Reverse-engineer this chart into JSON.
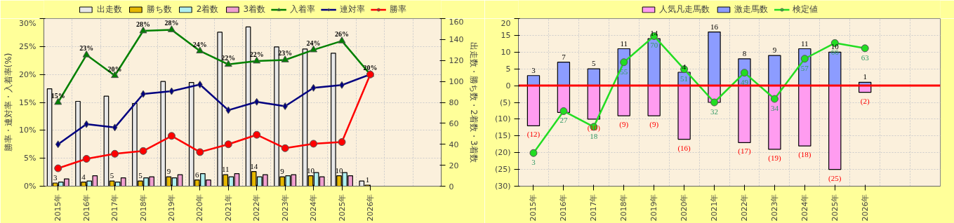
{
  "chart_data": [
    {
      "type": "bar",
      "categories": [
        "2015年",
        "2016年",
        "2017年",
        "2018年",
        "2019年",
        "2020年",
        "2021年",
        "2022年",
        "2023年",
        "2024年",
        "2025年",
        "2026年",
        null,
        null
      ],
      "ylabel": "勝率・連対率・入着率(%)",
      "y2label": "出走数・勝ち数・2着数・3着数",
      "ylim": [
        0,
        30
      ],
      "yticks": [
        {
          "value": 0,
          "label": "0%"
        },
        {
          "value": 5,
          "label": "5%"
        },
        {
          "value": 10,
          "label": "10%"
        },
        {
          "value": 15,
          "label": "15%"
        },
        {
          "value": 20,
          "label": "20%"
        },
        {
          "value": 25,
          "label": "25%"
        },
        {
          "value": 30,
          "label": "30%"
        }
      ],
      "y2lim": [
        0,
        160
      ],
      "y2ticks": [
        0,
        20,
        40,
        60,
        80,
        100,
        120,
        140,
        160
      ],
      "grid": true,
      "legend": "top",
      "series": [
        {
          "name": "出走数",
          "axis": "y2",
          "color": "#e8e8e8",
          "values": [
            93,
            81,
            86,
            79,
            100,
            99,
            147,
            152,
            133,
            131,
            127,
            5,
            null,
            null
          ]
        },
        {
          "name": "勝ち数",
          "axis": "y2",
          "color": "#e6b800",
          "values": [
            3,
            4,
            5,
            5,
            9,
            6,
            11,
            14,
            9,
            10,
            10,
            1,
            null,
            null
          ],
          "value_labels": [
            "3",
            "4",
            "5",
            "5",
            "9",
            "6",
            "11",
            "14",
            "9",
            "10",
            "10",
            "1",
            null,
            null
          ]
        },
        {
          "name": "2着数",
          "axis": "y2",
          "color": "#b0f0f0",
          "values": [
            4,
            5,
            4,
            8,
            8,
            12,
            9,
            9,
            10,
            13,
            13,
            null,
            null,
            null
          ]
        },
        {
          "name": "3着数",
          "axis": "y2",
          "color": "#f0a0d0",
          "values": [
            7,
            10,
            8,
            9,
            11,
            6,
            12,
            11,
            11,
            9,
            10,
            null,
            null,
            null
          ]
        },
        {
          "name": "入着率",
          "type": "line",
          "color": "#008000",
          "marker": "triangle",
          "values": [
            15.0,
            23.5,
            19.8,
            27.8,
            28.0,
            24.2,
            21.8,
            22.4,
            22.6,
            24.4,
            26.0,
            20.0,
            null,
            null
          ],
          "value_labels": [
            "15%",
            "23%",
            "20%",
            "28%",
            "28%",
            "24%",
            "22%",
            "22%",
            "23%",
            "24%",
            "26%",
            "20%",
            null,
            null
          ]
        },
        {
          "name": "連対率",
          "type": "line",
          "color": "#000080",
          "marker": "diamond",
          "values": [
            7.5,
            11.1,
            10.5,
            16.5,
            17.0,
            18.2,
            13.6,
            15.1,
            14.3,
            17.6,
            18.1,
            20.0,
            null,
            null
          ]
        },
        {
          "name": "勝率",
          "type": "line",
          "color": "#ff0000",
          "marker": "circle",
          "values": [
            3.2,
            4.9,
            5.8,
            6.3,
            9.0,
            6.1,
            7.5,
            9.2,
            6.8,
            7.6,
            7.9,
            20.0,
            null,
            null
          ]
        }
      ]
    },
    {
      "type": "bar",
      "stacked": true,
      "categories": [
        "2015年",
        "2016年",
        "2017年",
        "2018年",
        "2019年",
        "2020年",
        "2021年",
        "2022年",
        "2023年",
        "2024年",
        "2025年",
        "2026年",
        null,
        null
      ],
      "ylim": [
        -30,
        20
      ],
      "yticks": [
        {
          "value": -30,
          "label": "(30)"
        },
        {
          "value": -25,
          "label": "(25)"
        },
        {
          "value": -20,
          "label": "(20)"
        },
        {
          "value": -15,
          "label": "(15)"
        },
        {
          "value": -10,
          "label": "(10)"
        },
        {
          "value": -5,
          "label": "(5)"
        },
        0,
        5,
        10,
        15,
        20
      ],
      "y2lim": [
        -16,
        80
      ],
      "grid": true,
      "legend": "top",
      "ref_lines": [
        {
          "axis": "y",
          "value": 0,
          "color": "#ff0000"
        }
      ],
      "series": [
        {
          "name": "人気凡走馬数",
          "color": "#ff9cf0",
          "values": [
            -12,
            -8,
            -10,
            -9,
            -9,
            -16,
            -5,
            -17,
            -19,
            -18,
            -25,
            -2,
            null,
            null
          ],
          "value_labels": [
            "(12)",
            null,
            "(10)",
            "(9)",
            "(9)",
            "(16)",
            null,
            "(17)",
            "(19)",
            "(18)",
            "(25)",
            "(2)",
            null,
            null
          ]
        },
        {
          "name": "激走馬数",
          "color": "#8c9cff",
          "values": [
            3,
            7,
            5,
            11,
            14,
            4,
            16,
            8,
            9,
            11,
            10,
            1,
            null,
            null
          ],
          "value_labels": [
            "3",
            "7",
            "5",
            "11",
            "14",
            "4",
            "16",
            "8",
            "9",
            "11",
            "10",
            "1",
            null,
            null
          ]
        },
        {
          "name": "検定値",
          "type": "line",
          "axis": "y2",
          "color": "#22dd22",
          "marker": "circle",
          "values": [
            3,
            27,
            18,
            55,
            70,
            51,
            32,
            49,
            34,
            57,
            66,
            63,
            null,
            null
          ],
          "value_labels": [
            "3",
            "27",
            "18",
            "55",
            "70",
            "51",
            "32",
            "49",
            "34",
            "57",
            "66",
            "63",
            null,
            null
          ]
        }
      ]
    }
  ]
}
